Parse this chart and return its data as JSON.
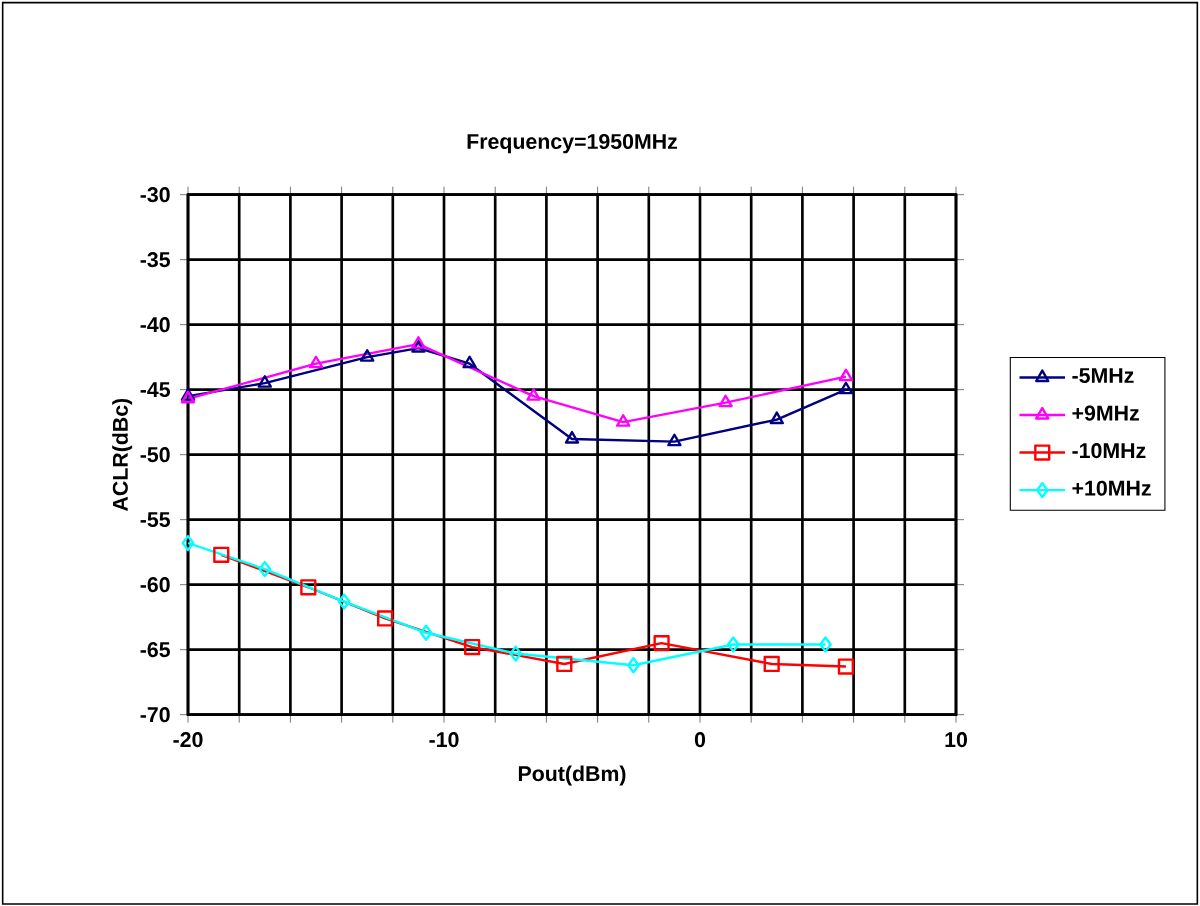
{
  "chart_data": {
    "type": "line",
    "title": "Frequency=1950MHz",
    "xlabel": "Pout(dBm)",
    "ylabel": "ACLR(dBc)",
    "xlim": [
      -20,
      10
    ],
    "ylim": [
      -70,
      -30
    ],
    "xticks": [
      -20,
      {
        "value": -18,
        "label": null
      },
      {
        "value": -16,
        "label": null
      },
      {
        "value": -14,
        "label": null
      },
      {
        "value": -12,
        "label": null
      },
      -10,
      {
        "value": -8,
        "label": null
      },
      {
        "value": -6,
        "label": null
      },
      {
        "value": -4,
        "label": null
      },
      {
        "value": -2,
        "label": null
      },
      0,
      {
        "value": 2,
        "label": null
      },
      {
        "value": 4,
        "label": null
      },
      {
        "value": 6,
        "label": null
      },
      {
        "value": 8,
        "label": null
      },
      10
    ],
    "yticks": [
      -70,
      -65,
      -60,
      -55,
      -50,
      -45,
      -40,
      -35,
      -30
    ],
    "grid": true,
    "legend": "right",
    "series": [
      {
        "name": "-5MHz",
        "color": "#000080",
        "marker": "triangle",
        "x": [
          -20,
          -17,
          -13,
          -11,
          -9,
          -5,
          -1,
          3,
          5.7
        ],
        "values": [
          -45.5,
          -44.5,
          -42.5,
          -41.8,
          -43,
          -48.8,
          -49,
          -47.3,
          -45
        ]
      },
      {
        "name": "+9MHz",
        "color": "#ff00ff",
        "marker": "triangle-down",
        "x": [
          -20,
          -15,
          -11,
          -6.5,
          -3,
          1,
          5.7
        ],
        "values": [
          -45.7,
          -43,
          -41.5,
          -45.5,
          -47.5,
          -46,
          -44
        ]
      },
      {
        "name": "-10MHz",
        "color": "#ff0000",
        "marker": "square",
        "x": [
          -18.7,
          -15.3,
          -12.3,
          -8.9,
          -5.3,
          -1.5,
          2.8,
          5.7
        ],
        "values": [
          -57.7,
          -60.2,
          -62.6,
          -64.8,
          -66.1,
          -64.5,
          -66.1,
          -66.3
        ]
      },
      {
        "name": "+10MHz",
        "color": "#00ffff",
        "marker": "diamond",
        "x": [
          -20,
          -17,
          -13.9,
          -10.7,
          -7.2,
          -2.6,
          1.3,
          4.9
        ],
        "values": [
          -56.8,
          -58.8,
          -61.3,
          -63.7,
          -65.3,
          -66.2,
          -64.6,
          -64.6
        ]
      }
    ]
  }
}
